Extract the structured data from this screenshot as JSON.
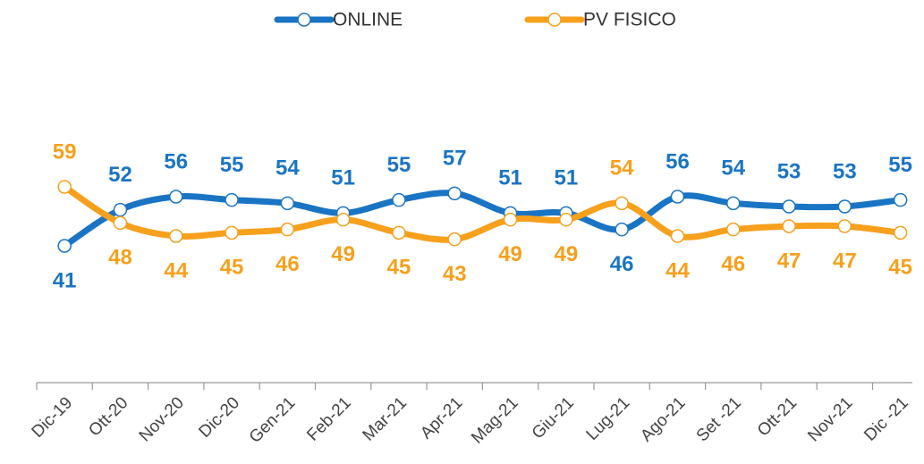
{
  "chart_data": {
    "type": "line",
    "categories": [
      "Dic-19",
      "Ott-20",
      "Nov-20",
      "Dic-20",
      "Gen-21",
      "Feb-21",
      "Mar-21",
      "Apr-21",
      "Mag-21",
      "Giu-21",
      "Lug-21",
      "Ago-21",
      "Set -21",
      "Ott-21",
      "Nov-21",
      "Dic -21"
    ],
    "series": [
      {
        "name": "ONLINE",
        "color": "#1a74c4",
        "values": [
          41,
          52,
          56,
          55,
          54,
          51,
          55,
          57,
          51,
          51,
          46,
          56,
          54,
          53,
          53,
          55
        ]
      },
      {
        "name": "PV FISICO",
        "color": "#f7a01c",
        "values": [
          59,
          48,
          44,
          45,
          46,
          49,
          45,
          43,
          49,
          49,
          54,
          44,
          46,
          47,
          47,
          45
        ]
      }
    ],
    "legend": "top",
    "grid": false
  }
}
